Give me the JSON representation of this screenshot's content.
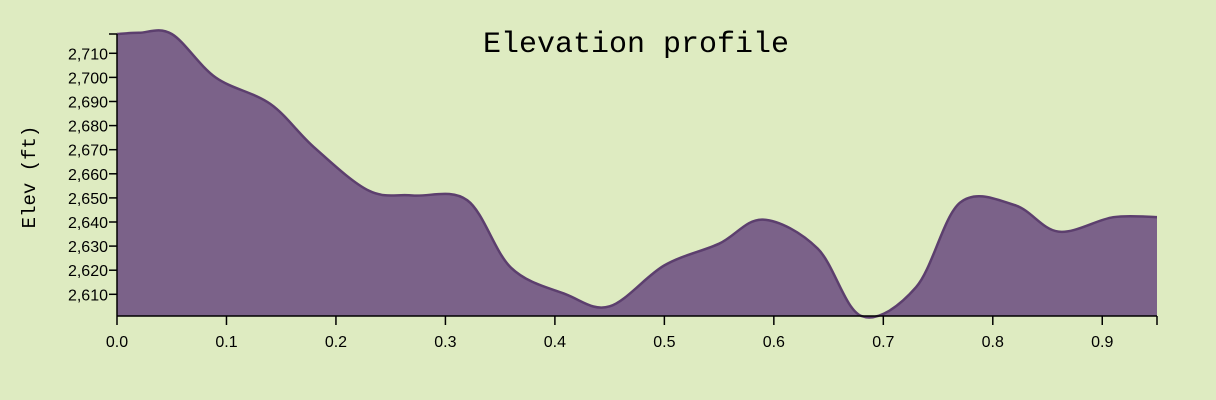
{
  "colors": {
    "background": "#deebc1",
    "area_fill": "#7b6289",
    "area_stroke": "#5c3f6e",
    "axis": "#000000"
  },
  "chart_data": {
    "type": "area",
    "title": "Elevation profile",
    "xlabel": "",
    "ylabel": "Elev (ft)",
    "xlim": [
      0.0,
      0.95
    ],
    "ylim": [
      2601,
      2718
    ],
    "grid": false,
    "x_ticks": [
      "0.0",
      "0.1",
      "0.2",
      "0.3",
      "0.4",
      "0.5",
      "0.6",
      "0.7",
      "0.8",
      "0.9"
    ],
    "y_ticks": [
      "2,610",
      "2,620",
      "2,630",
      "2,640",
      "2,650",
      "2,660",
      "2,670",
      "2,680",
      "2,690",
      "2,700",
      "2,710"
    ],
    "series": [
      {
        "x": [
          0.0,
          0.02,
          0.05,
          0.09,
          0.14,
          0.18,
          0.23,
          0.27,
          0.32,
          0.36,
          0.41,
          0.45,
          0.5,
          0.55,
          0.59,
          0.64,
          0.68,
          0.73,
          0.77,
          0.82,
          0.86,
          0.91,
          0.95
        ],
        "y": [
          2718,
          2718.5,
          2718,
          2700,
          2689,
          2671,
          2653,
          2651,
          2649,
          2621,
          2610,
          2605,
          2622,
          2631,
          2641,
          2629,
          2601,
          2613,
          2648,
          2647,
          2636,
          2642,
          2642
        ]
      }
    ]
  }
}
